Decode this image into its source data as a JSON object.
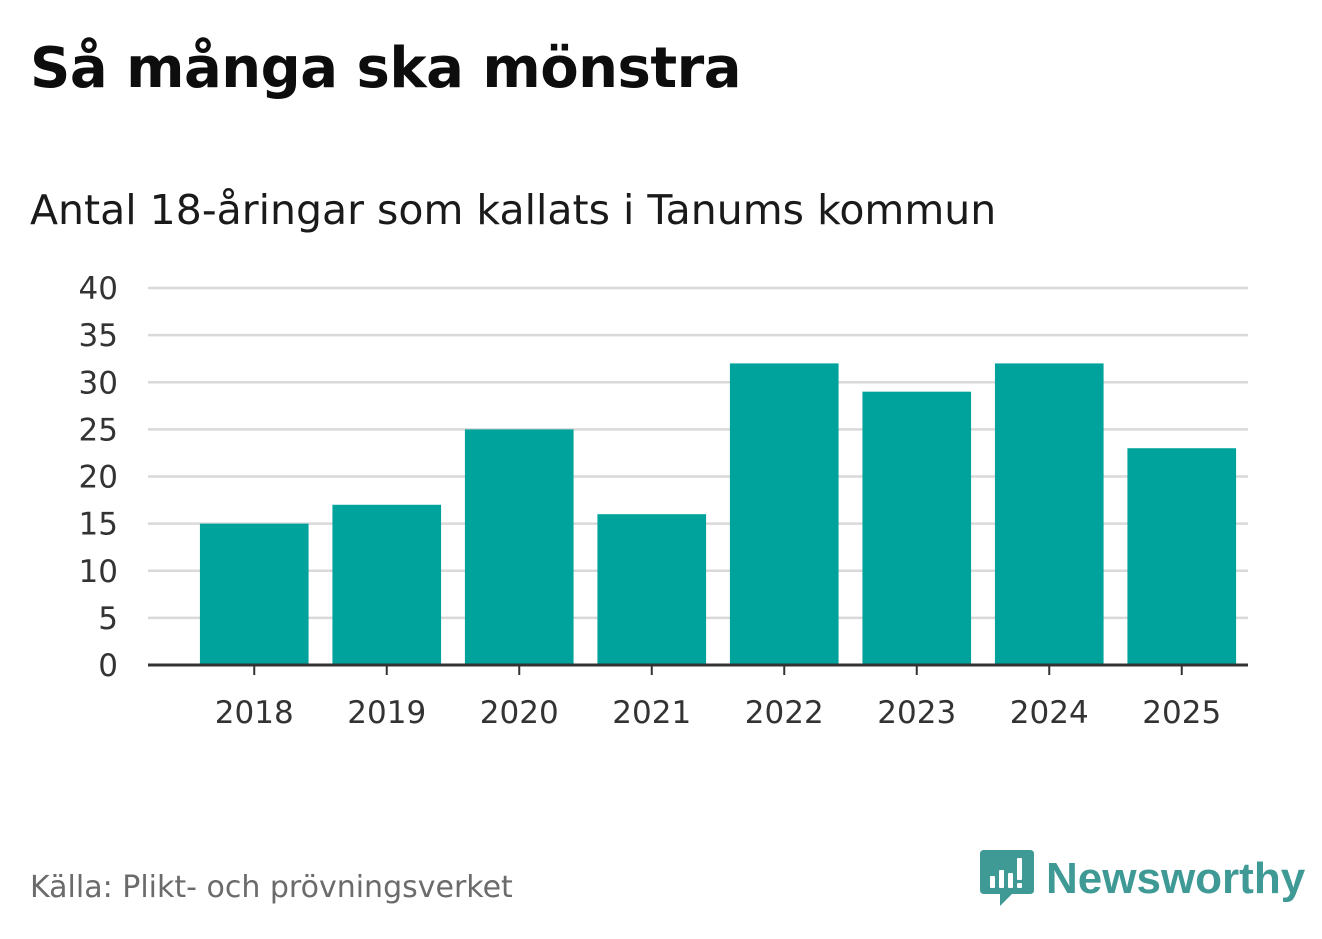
{
  "title": "Så många ska mönstra",
  "subtitle": "Antal 18-åringar som kallats i Tanums kommun",
  "source": "Källa: Plikt- och prövningsverket",
  "brand": {
    "name": "Newsworthy",
    "icon": "newsworthy-logo-icon",
    "color": "#3f9a95"
  },
  "colors": {
    "bar": "#00a39b",
    "grid": "#d9d9d9",
    "axis": "#333333"
  },
  "chart_data": {
    "type": "bar",
    "title": "Så många ska mönstra",
    "subtitle": "Antal 18-åringar som kallats i Tanums kommun",
    "categories": [
      "2018",
      "2019",
      "2020",
      "2021",
      "2022",
      "2023",
      "2024",
      "2025"
    ],
    "values": [
      15,
      17,
      25,
      16,
      32,
      29,
      32,
      23
    ],
    "xlabel": "",
    "ylabel": "",
    "ylim": [
      0,
      40
    ],
    "yticks": [
      0,
      5,
      10,
      15,
      20,
      25,
      30,
      35,
      40
    ],
    "grid": true,
    "legend": "none"
  }
}
